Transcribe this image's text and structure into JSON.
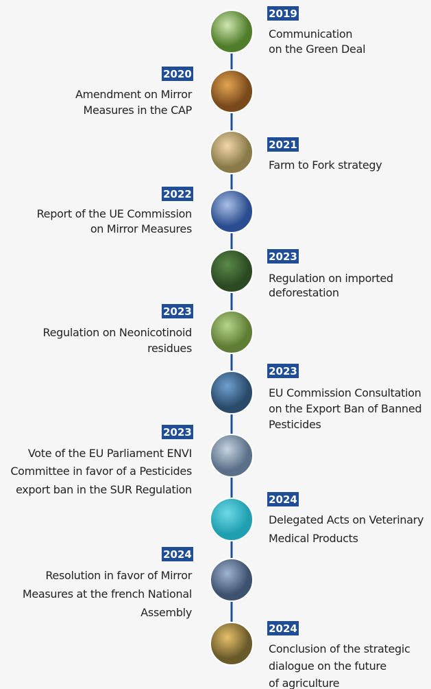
{
  "events": [
    {
      "year": "2019",
      "lines": [
        "Communication",
        "on the Green Deal"
      ]
    },
    {
      "year": "2020",
      "lines": [
        "Amendment on Mirror",
        "Measures in the CAP"
      ]
    },
    {
      "year": "2021",
      "lines": [
        "Farm to Fork strategy"
      ]
    },
    {
      "year": "2022",
      "lines": [
        "Report of the UE Commission",
        "on Mirror Measures"
      ]
    },
    {
      "year": "2023",
      "lines": [
        "Regulation on imported",
        "deforestation"
      ]
    },
    {
      "year": "2023",
      "lines": [
        "Regulation on Neonicotinoid",
        "residues"
      ]
    },
    {
      "year": "2023",
      "lines": [
        "EU Commission Consultation",
        "on the Export Ban of Banned",
        "Pesticides"
      ]
    },
    {
      "year": "2023",
      "lines": [
        "Vote of the EU Parliament ENVI",
        "Committee in favor of a Pesticides",
        "export ban in the SUR Regulation"
      ]
    },
    {
      "year": "2024",
      "lines": [
        "Delegated Acts on Veterinary",
        "Medical Products"
      ]
    },
    {
      "year": "2024",
      "lines": [
        "Resolution in favor of Mirror",
        "Measures at the french National",
        "Assembly"
      ]
    },
    {
      "year": "2024",
      "lines": [
        "Conclusion of the strategic",
        "dialogue on the future",
        "of agriculture"
      ]
    }
  ]
}
